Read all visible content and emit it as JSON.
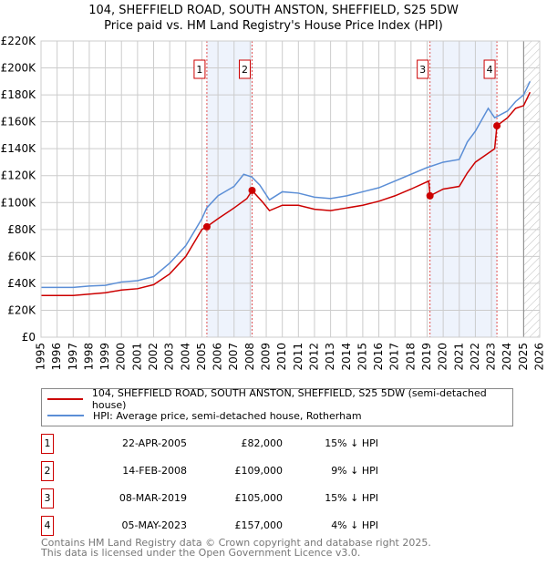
{
  "chart_data": {
    "type": "line",
    "title": "104, SHEFFIELD ROAD, SOUTH ANSTON, SHEFFIELD, S25 5DW",
    "subtitle": "Price paid vs. HM Land Registry's House Price Index (HPI)",
    "xlim": [
      1995,
      2026
    ],
    "ylim": [
      0,
      220000
    ],
    "yticks": [
      0,
      20000,
      40000,
      60000,
      80000,
      100000,
      120000,
      140000,
      160000,
      180000,
      200000,
      220000
    ],
    "ytick_labels": [
      "£0",
      "£20K",
      "£40K",
      "£60K",
      "£80K",
      "£100K",
      "£120K",
      "£140K",
      "£160K",
      "£180K",
      "£200K",
      "£220K"
    ],
    "xticks": [
      1995,
      1996,
      1997,
      1998,
      1999,
      2000,
      2001,
      2002,
      2003,
      2004,
      2005,
      2006,
      2007,
      2008,
      2009,
      2010,
      2011,
      2012,
      2013,
      2014,
      2015,
      2016,
      2017,
      2018,
      2019,
      2020,
      2021,
      2022,
      2023,
      2024,
      2025,
      2026
    ],
    "grid": true,
    "forecast_start": 2025.0,
    "series": [
      {
        "name": "104, SHEFFIELD ROAD, SOUTH ANSTON, SHEFFIELD, S25 5DW (semi-detached house)",
        "color": "#cc0000",
        "x": [
          1995,
          1996,
          1997,
          1998,
          1999,
          2000,
          2001,
          2002,
          2003,
          2004,
          2005,
          2005.3,
          2006,
          2007,
          2007.8,
          2008.12,
          2008.8,
          2009.2,
          2010,
          2011,
          2012,
          2013,
          2014,
          2015,
          2016,
          2017,
          2018,
          2019.1,
          2019.18,
          2020,
          2021,
          2021.5,
          2022,
          2023.2,
          2023.34,
          2024,
          2024.5,
          2025,
          2025.4
        ],
        "y": [
          31000,
          31000,
          31000,
          32000,
          33000,
          35000,
          36000,
          39000,
          47000,
          60000,
          80000,
          82000,
          88000,
          96000,
          103000,
          109000,
          100000,
          94000,
          98000,
          98000,
          95000,
          94000,
          96000,
          98000,
          101000,
          105000,
          110000,
          116000,
          105000,
          110000,
          112000,
          122000,
          130000,
          140000,
          157000,
          163000,
          170000,
          172000,
          182000
        ]
      },
      {
        "name": "HPI: Average price, semi-detached house, Rotherham",
        "color": "#5b8ed6",
        "x": [
          1995,
          1996,
          1997,
          1998,
          1999,
          2000,
          2001,
          2002,
          2003,
          2004,
          2005,
          2005.3,
          2006,
          2007,
          2007.6,
          2008.1,
          2008.6,
          2009.2,
          2010,
          2011,
          2012,
          2013,
          2014,
          2015,
          2016,
          2017,
          2018,
          2019,
          2020,
          2021,
          2021.5,
          2022,
          2022.8,
          2023.2,
          2024,
          2024.5,
          2025,
          2025.4
        ],
        "y": [
          37000,
          37000,
          37000,
          38000,
          38500,
          41000,
          42000,
          45000,
          55000,
          68000,
          88000,
          96000,
          105000,
          112000,
          121000,
          119000,
          113000,
          102000,
          108000,
          107000,
          104000,
          103000,
          105000,
          108000,
          111000,
          116000,
          121000,
          126000,
          130000,
          132000,
          145000,
          153000,
          170000,
          163000,
          168000,
          175000,
          180000,
          190000
        ]
      }
    ],
    "sales": [
      {
        "label": "1",
        "x": 2005.31,
        "y": 82000,
        "date": "22-APR-2005",
        "price": "£82,000",
        "hpi": "15% ↓ HPI"
      },
      {
        "label": "2",
        "x": 2008.12,
        "y": 109000,
        "date": "14-FEB-2008",
        "price": "£109,000",
        "hpi": "9% ↓ HPI"
      },
      {
        "label": "3",
        "x": 2019.18,
        "y": 105000,
        "date": "08-MAR-2019",
        "price": "£105,000",
        "hpi": "15% ↓ HPI"
      },
      {
        "label": "4",
        "x": 2023.34,
        "y": 157000,
        "date": "05-MAY-2023",
        "price": "£157,000",
        "hpi": "4% ↓ HPI"
      }
    ],
    "legend_position": "below"
  },
  "legend": {
    "red": "104, SHEFFIELD ROAD, SOUTH ANSTON, SHEFFIELD, S25 5DW (semi-detached house)",
    "blue": "HPI: Average price, semi-detached house, Rotherham"
  },
  "footer": {
    "line1": "Contains HM Land Registry data © Crown copyright and database right 2025.",
    "line2": "This data is licensed under the Open Government Licence v3.0."
  }
}
